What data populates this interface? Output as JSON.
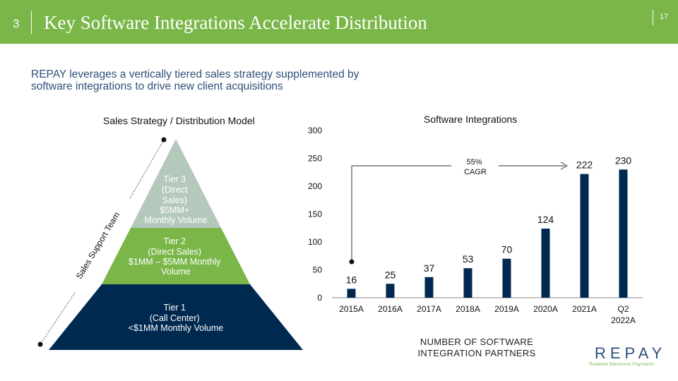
{
  "header": {
    "slide_number": "3",
    "title": "Key Software Integrations Accelerate Distribution",
    "page_number": "17"
  },
  "subtitle": {
    "line1": "REPAY leverages a vertically tiered sales strategy supplemented by",
    "line2": "software integrations to drive new client acquisitions"
  },
  "pyramid": {
    "title": "Sales Strategy / Distribution Model",
    "side_label": "Sales Support Team",
    "colors": {
      "tier3": "#b5c8bc",
      "tier2": "#7ab648",
      "tier1": "#00294f"
    },
    "tiers": [
      {
        "name": "tier-3",
        "lines": [
          "Tier 3",
          "(Direct",
          "Sales)",
          "$5MM+",
          "Monthly Volume"
        ]
      },
      {
        "name": "tier-2",
        "lines": [
          "Tier 2",
          "(Direct Sales)",
          "$1MM – $5MM Monthly",
          "Volume"
        ]
      },
      {
        "name": "tier-1",
        "lines": [
          "Tier 1",
          "(Call Center)",
          "<$1MM Monthly Volume"
        ]
      }
    ]
  },
  "chart_data": {
    "type": "bar",
    "title": "Software Integrations",
    "categories": [
      "2015A",
      "2016A",
      "2017A",
      "2018A",
      "2019A",
      "2020A",
      "2021A",
      "Q2 2022A"
    ],
    "category_lines": [
      [
        "2015A"
      ],
      [
        "2016A"
      ],
      [
        "2017A"
      ],
      [
        "2018A"
      ],
      [
        "2019A"
      ],
      [
        "2020A"
      ],
      [
        "2021A"
      ],
      [
        "Q2",
        "2022A"
      ]
    ],
    "values": [
      16,
      25,
      37,
      53,
      70,
      124,
      222,
      230
    ],
    "value_labels": [
      "16",
      "25",
      "37",
      "53",
      "70",
      "124",
      "222",
      "230"
    ],
    "ylim": [
      0,
      300
    ],
    "yticks": [
      0,
      50,
      100,
      150,
      200,
      250,
      300
    ],
    "bar_color": "#00294f",
    "grid": false,
    "annotation": {
      "lines": [
        "55%",
        "CAGR"
      ]
    },
    "xlabel": "",
    "ylabel": ""
  },
  "footnote": {
    "line1": "NUMBER OF SOFTWARE",
    "line2": "INTEGRATION PARTNERS"
  },
  "logo": {
    "wordmark": "REPAY",
    "tagline": "Realtime Electronic Payments"
  }
}
